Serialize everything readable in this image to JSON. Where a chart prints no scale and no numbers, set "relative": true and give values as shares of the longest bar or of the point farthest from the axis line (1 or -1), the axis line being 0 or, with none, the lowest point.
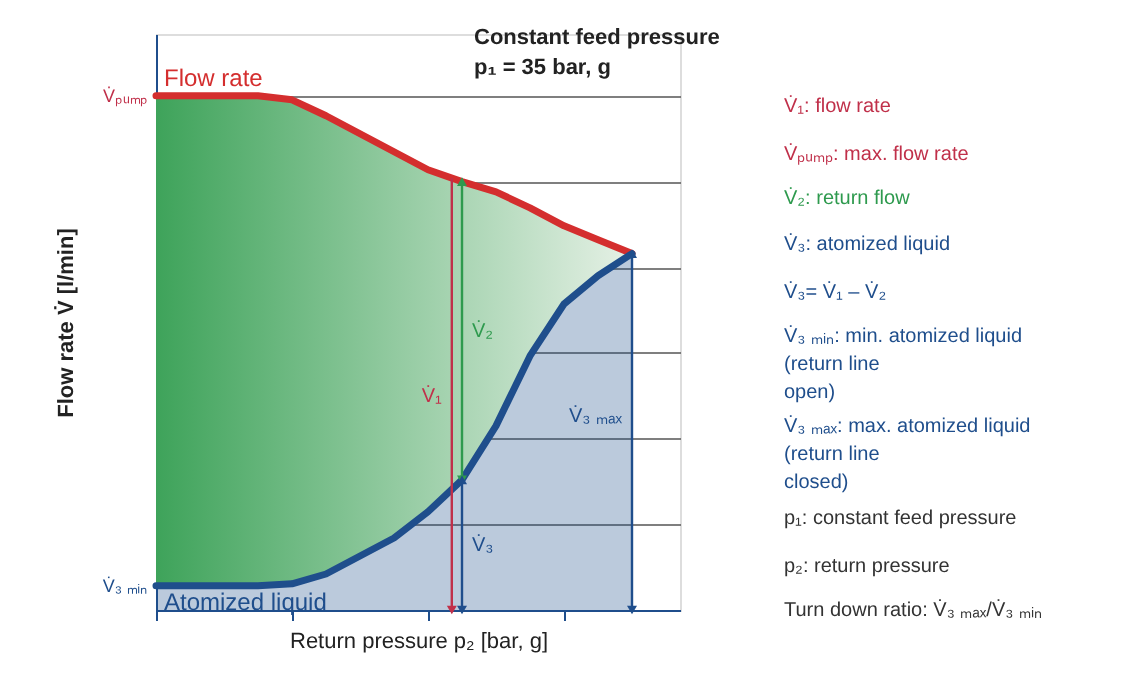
{
  "chart_data": {
    "type": "area",
    "relative": true,
    "title": "Constant feed pressure",
    "subtitle": "p₁ = 35 bar, g",
    "xlabel": "Return pressure  p₂ [bar, g]",
    "ylabel": "Flow rate V̇ [l/min]",
    "categories": [
      null,
      null,
      null,
      null,
      null,
      null,
      null,
      null,
      null,
      null,
      null,
      null,
      null,
      null,
      null
    ],
    "series": [
      {
        "name": "Flow rate",
        "color": "#d42e2e",
        "values": [
          1,
          1,
          1,
          1,
          0.992,
          0.961,
          0.926,
          0.891,
          0.856,
          0.833,
          0.813,
          0.782,
          0.747,
          0.72,
          0.693
        ]
      },
      {
        "name": "Atomized liquid",
        "color": "#1f4e8c",
        "values": [
          0.047,
          0.047,
          0.047,
          0.047,
          0.051,
          0.07,
          0.105,
          0.14,
          0.191,
          0.253,
          0.358,
          0.494,
          0.595,
          0.65,
          0.693
        ]
      }
    ],
    "grid": "y",
    "tick_labels": false,
    "annotations": [
      "V̇ₚᵤₘₚ",
      "V̇₃ ₘᵢₙ",
      "V̇₁",
      "V̇₂",
      "V̇₃",
      "V̇₃ ₘₐₓ",
      "V̇₁: flow rate",
      "V̇ₚᵤₘₚ: max. flow rate",
      "V̇₂: return flow",
      "V̇₃: atomized liquid",
      "V̇₃= V̇₁ – V̇₂",
      "V̇₃ ₘᵢₙ: min. atomized liquid\n        (return line\n        open)",
      "V̇₃ ₘₐₓ: max. atomized liquid\n        (return line\n        closed)",
      "p₁: constant feed pressure",
      "p₂: return pressure",
      "Turn down ratio: V̇₃ ₘₐₓ/V̇₃ ₘᵢₙ"
    ]
  }
}
